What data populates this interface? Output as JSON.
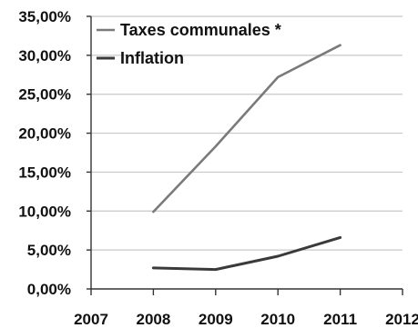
{
  "chart_data": {
    "type": "line",
    "x": [
      2008,
      2009,
      2010,
      2011
    ],
    "series": [
      {
        "name": "Taxes communales *",
        "color": "#7a7a7a",
        "values": [
          9.9,
          18.3,
          27.2,
          31.3
        ]
      },
      {
        "name": "Inflation",
        "color": "#3a3a3a",
        "values": [
          2.7,
          2.5,
          4.2,
          6.6
        ]
      }
    ],
    "xlim": [
      2007,
      2012
    ],
    "ylim": [
      0,
      35
    ],
    "y_ticks": [
      0,
      5,
      10,
      15,
      20,
      25,
      30,
      35
    ],
    "y_tick_labels": [
      "0,00%",
      "5,00%",
      "10,00%",
      "15,00%",
      "20,00%",
      "25,00%",
      "30,00%",
      "35,00%"
    ],
    "x_ticks": [
      2007,
      2008,
      2009,
      2010,
      2011,
      2012
    ],
    "x_tick_labels": [
      "2007",
      "2008",
      "2009",
      "2010",
      "2011",
      "2012"
    ],
    "grid": "horizontal",
    "legend_position": "top-left"
  }
}
